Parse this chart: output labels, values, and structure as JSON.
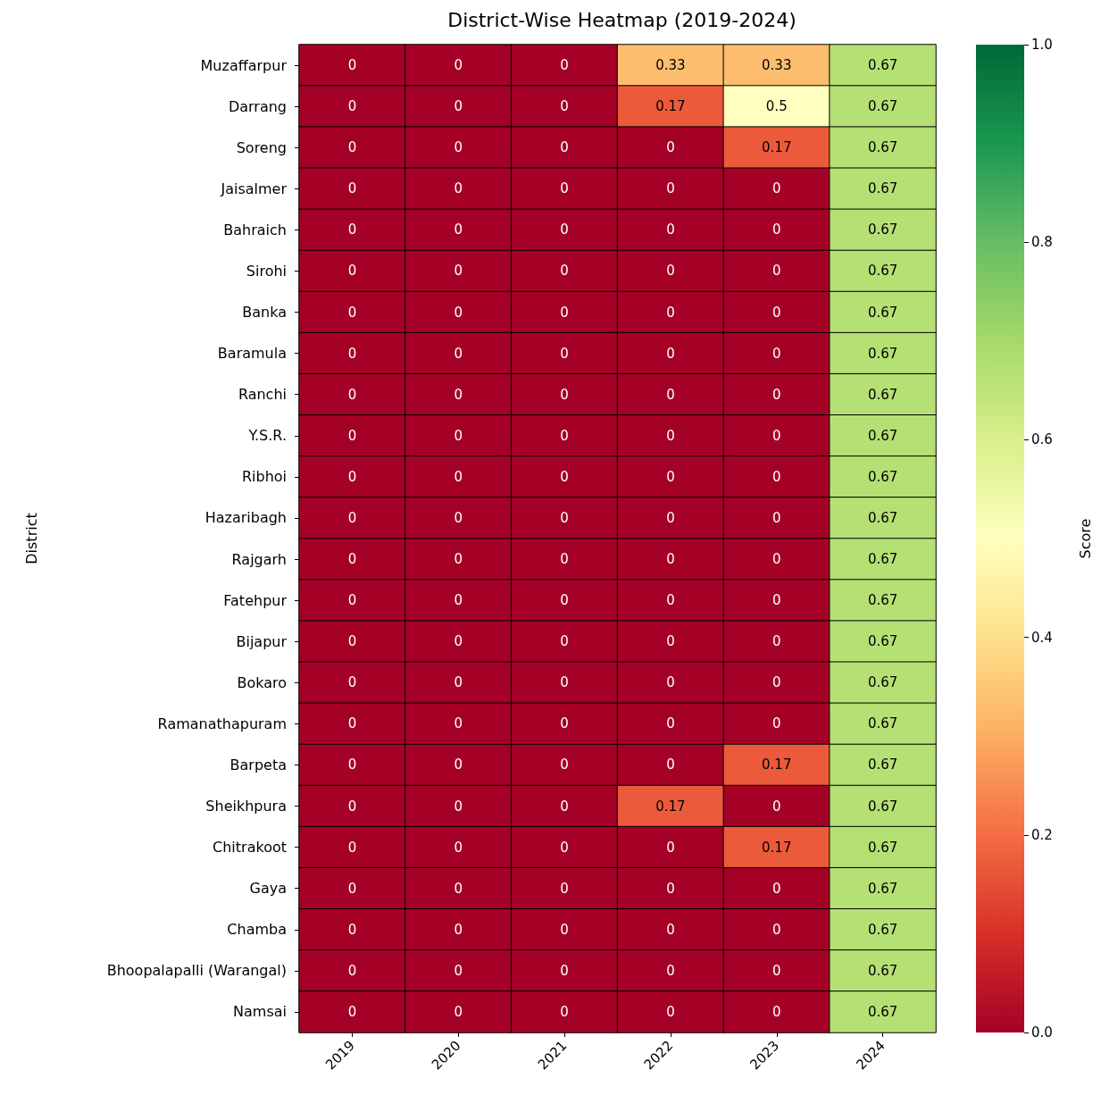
{
  "chart_data": {
    "type": "heatmap",
    "title": "District-Wise Heatmap (2019-2024)",
    "ylabel": "District",
    "clabel": "Score",
    "categories": [
      "2019",
      "2020",
      "2021",
      "2022",
      "2023",
      "2024"
    ],
    "y_categories": [
      "Muzaffarpur",
      "Darrang",
      "Soreng",
      "Jaisalmer",
      "Bahraich",
      "Sirohi",
      "Banka",
      "Baramula",
      "Ranchi",
      "Y.S.R.",
      "Ribhoi",
      "Hazaribagh",
      "Rajgarh",
      "Fatehpur",
      "Bijapur",
      "Bokaro",
      "Ramanathapuram",
      "Barpeta",
      "Sheikhpura",
      "Chitrakoot",
      "Gaya",
      "Chamba",
      "Bhoopalapalli (Warangal)",
      "Namsai"
    ],
    "cells": [
      [
        0,
        0,
        0,
        0.33,
        0.33,
        0.67
      ],
      [
        0,
        0,
        0,
        0.17,
        0.5,
        0.67
      ],
      [
        0,
        0,
        0,
        0,
        0.17,
        0.67
      ],
      [
        0,
        0,
        0,
        0,
        0,
        0.67
      ],
      [
        0,
        0,
        0,
        0,
        0,
        0.67
      ],
      [
        0,
        0,
        0,
        0,
        0,
        0.67
      ],
      [
        0,
        0,
        0,
        0,
        0,
        0.67
      ],
      [
        0,
        0,
        0,
        0,
        0,
        0.67
      ],
      [
        0,
        0,
        0,
        0,
        0,
        0.67
      ],
      [
        0,
        0,
        0,
        0,
        0,
        0.67
      ],
      [
        0,
        0,
        0,
        0,
        0,
        0.67
      ],
      [
        0,
        0,
        0,
        0,
        0,
        0.67
      ],
      [
        0,
        0,
        0,
        0,
        0,
        0.67
      ],
      [
        0,
        0,
        0,
        0,
        0,
        0.67
      ],
      [
        0,
        0,
        0,
        0,
        0,
        0.67
      ],
      [
        0,
        0,
        0,
        0,
        0,
        0.67
      ],
      [
        0,
        0,
        0,
        0,
        0,
        0.67
      ],
      [
        0,
        0,
        0,
        0,
        0.17,
        0.67
      ],
      [
        0,
        0,
        0,
        0.17,
        0,
        0.67
      ],
      [
        0,
        0,
        0,
        0,
        0.17,
        0.67
      ],
      [
        0,
        0,
        0,
        0,
        0,
        0.67
      ],
      [
        0,
        0,
        0,
        0,
        0,
        0.67
      ],
      [
        0,
        0,
        0,
        0,
        0,
        0.67
      ],
      [
        0,
        0,
        0,
        0,
        0,
        0.67
      ]
    ],
    "data_labels": true,
    "clim": [
      0,
      1
    ],
    "cticks": [
      {
        "value": 0,
        "label": "0.0"
      },
      {
        "value": 0.2,
        "label": "0.2"
      },
      {
        "value": 0.4,
        "label": "0.4"
      },
      {
        "value": 0.6,
        "label": "0.6"
      },
      {
        "value": 0.8,
        "label": "0.8"
      },
      {
        "value": 1,
        "label": "1.0"
      }
    ]
  }
}
